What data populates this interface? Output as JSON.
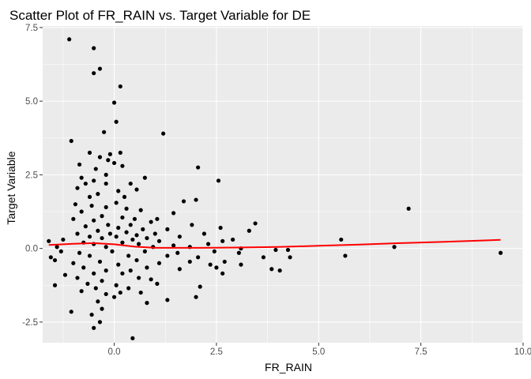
{
  "chart_data": {
    "type": "scatter",
    "title": "Scatter Plot of FR_RAIN vs. Target Variable for DE",
    "xlabel": "FR_RAIN",
    "ylabel": "Target Variable",
    "xlim": [
      -1.75,
      10.0
    ],
    "ylim": [
      -3.2,
      7.55
    ],
    "x_ticks": [
      0.0,
      2.5,
      5.0,
      7.5,
      10.0
    ],
    "x_tick_labels": [
      "0.0",
      "2.5",
      "5.0",
      "7.5",
      "10.0"
    ],
    "y_ticks": [
      -2.5,
      0.0,
      2.5,
      5.0,
      7.5
    ],
    "y_tick_labels": [
      "-2.5",
      "0.0",
      "2.5",
      "5.0",
      "7.5"
    ],
    "grid": true,
    "point_color": "#000000",
    "panel_color": "#ebebeb",
    "trend_color": "#ff0000",
    "points": [
      [
        -1.1,
        7.1
      ],
      [
        -0.5,
        6.8
      ],
      [
        -0.35,
        6.1
      ],
      [
        -0.5,
        5.95
      ],
      [
        0.15,
        5.5
      ],
      [
        0.0,
        4.95
      ],
      [
        0.05,
        4.3
      ],
      [
        -0.25,
        3.95
      ],
      [
        1.2,
        3.9
      ],
      [
        -1.05,
        3.65
      ],
      [
        -0.6,
        3.25
      ],
      [
        -0.1,
        3.2
      ],
      [
        0.15,
        3.25
      ],
      [
        -0.35,
        3.1
      ],
      [
        -0.15,
        3.0
      ],
      [
        -0.85,
        2.85
      ],
      [
        0.0,
        2.9
      ],
      [
        0.2,
        2.8
      ],
      [
        2.05,
        2.75
      ],
      [
        -0.45,
        2.7
      ],
      [
        -0.2,
        2.5
      ],
      [
        -0.8,
        2.4
      ],
      [
        0.75,
        2.4
      ],
      [
        -0.5,
        2.3
      ],
      [
        2.55,
        2.3
      ],
      [
        -0.7,
        2.2
      ],
      [
        -0.2,
        2.2
      ],
      [
        0.4,
        2.2
      ],
      [
        -0.9,
        2.05
      ],
      [
        0.1,
        1.95
      ],
      [
        0.55,
        2.0
      ],
      [
        -0.4,
        1.85
      ],
      [
        0.25,
        1.75
      ],
      [
        -0.6,
        1.75
      ],
      [
        0.05,
        1.55
      ],
      [
        1.7,
        1.6
      ],
      [
        2.0,
        1.65
      ],
      [
        -0.95,
        1.5
      ],
      [
        -0.55,
        1.45
      ],
      [
        -0.2,
        1.4
      ],
      [
        0.3,
        1.35
      ],
      [
        0.65,
        1.3
      ],
      [
        -0.8,
        1.25
      ],
      [
        1.45,
        1.2
      ],
      [
        -0.3,
        1.1
      ],
      [
        0.2,
        1.05
      ],
      [
        -1.0,
        1.0
      ],
      [
        0.5,
        1.0
      ],
      [
        -0.5,
        0.95
      ],
      [
        1.05,
        1.0
      ],
      [
        0.9,
        0.9
      ],
      [
        3.45,
        0.85
      ],
      [
        7.2,
        1.35
      ],
      [
        -0.15,
        0.8
      ],
      [
        0.4,
        0.8
      ],
      [
        1.9,
        0.8
      ],
      [
        -0.7,
        0.75
      ],
      [
        0.1,
        0.7
      ],
      [
        0.7,
        0.65
      ],
      [
        1.3,
        0.65
      ],
      [
        2.6,
        0.7
      ],
      [
        -0.4,
        0.6
      ],
      [
        0.3,
        0.55
      ],
      [
        3.3,
        0.6
      ],
      [
        -0.9,
        0.5
      ],
      [
        -0.1,
        0.5
      ],
      [
        0.55,
        0.45
      ],
      [
        1.0,
        0.5
      ],
      [
        2.2,
        0.5
      ],
      [
        -0.6,
        0.4
      ],
      [
        0.05,
        0.4
      ],
      [
        0.8,
        0.35
      ],
      [
        1.6,
        0.4
      ],
      [
        -1.25,
        0.3
      ],
      [
        -0.3,
        0.35
      ],
      [
        0.45,
        0.3
      ],
      [
        2.9,
        0.3
      ],
      [
        5.55,
        0.3
      ],
      [
        -1.6,
        0.25
      ],
      [
        -0.75,
        0.2
      ],
      [
        0.2,
        0.2
      ],
      [
        1.1,
        0.25
      ],
      [
        2.65,
        0.25
      ],
      [
        -0.5,
        0.15
      ],
      [
        0.6,
        0.15
      ],
      [
        1.45,
        0.1
      ],
      [
        2.3,
        0.15
      ],
      [
        3.1,
        0.0
      ],
      [
        -1.4,
        0.05
      ],
      [
        -0.2,
        0.05
      ],
      [
        0.95,
        0.05
      ],
      [
        1.85,
        0.05
      ],
      [
        3.95,
        -0.05
      ],
      [
        4.25,
        -0.05
      ],
      [
        6.85,
        0.05
      ],
      [
        -1.3,
        -0.1
      ],
      [
        -0.85,
        -0.15
      ],
      [
        -0.05,
        -0.1
      ],
      [
        0.75,
        -0.1
      ],
      [
        1.55,
        -0.15
      ],
      [
        2.45,
        -0.1
      ],
      [
        3.05,
        -0.15
      ],
      [
        9.45,
        -0.15
      ],
      [
        -1.55,
        -0.3
      ],
      [
        -0.6,
        -0.25
      ],
      [
        0.35,
        -0.25
      ],
      [
        1.3,
        -0.25
      ],
      [
        2.05,
        -0.3
      ],
      [
        3.65,
        -0.3
      ],
      [
        4.3,
        -0.3
      ],
      [
        5.65,
        -0.25
      ],
      [
        -1.45,
        -0.4
      ],
      [
        -0.35,
        -0.45
      ],
      [
        0.55,
        -0.4
      ],
      [
        1.85,
        -0.45
      ],
      [
        2.7,
        -0.45
      ],
      [
        -1.0,
        -0.5
      ],
      [
        0.1,
        -0.55
      ],
      [
        1.1,
        -0.5
      ],
      [
        2.35,
        -0.55
      ],
      [
        3.1,
        -0.55
      ],
      [
        -0.75,
        -0.65
      ],
      [
        0.8,
        -0.65
      ],
      [
        2.5,
        -0.65
      ],
      [
        -0.2,
        -0.75
      ],
      [
        0.4,
        -0.75
      ],
      [
        1.6,
        -0.7
      ],
      [
        3.85,
        -0.7
      ],
      [
        4.05,
        -0.75
      ],
      [
        -1.2,
        -0.9
      ],
      [
        -0.5,
        -0.85
      ],
      [
        0.2,
        -0.85
      ],
      [
        2.65,
        -0.85
      ],
      [
        -0.9,
        -1.0
      ],
      [
        0.6,
        -1.0
      ],
      [
        -0.3,
        -1.1
      ],
      [
        0.9,
        -1.05
      ],
      [
        -1.45,
        -1.25
      ],
      [
        -0.65,
        -1.2
      ],
      [
        0.05,
        -1.25
      ],
      [
        1.05,
        -1.2
      ],
      [
        2.1,
        -1.3
      ],
      [
        -0.45,
        -1.35
      ],
      [
        0.35,
        -1.35
      ],
      [
        -0.8,
        -1.45
      ],
      [
        0.15,
        -1.5
      ],
      [
        -0.2,
        -1.55
      ],
      [
        0.65,
        -1.5
      ],
      [
        0.0,
        -1.65
      ],
      [
        1.3,
        -1.75
      ],
      [
        2.0,
        -1.65
      ],
      [
        -0.4,
        -1.8
      ],
      [
        0.8,
        -1.85
      ],
      [
        -1.05,
        -2.15
      ],
      [
        -0.3,
        -2.05
      ],
      [
        -0.55,
        -2.25
      ],
      [
        -0.35,
        -2.5
      ],
      [
        -0.5,
        -2.7
      ],
      [
        0.45,
        -3.05
      ]
    ],
    "trend": [
      [
        -1.6,
        0.12
      ],
      [
        -1.0,
        0.16
      ],
      [
        -0.5,
        0.18
      ],
      [
        0.0,
        0.14
      ],
      [
        0.5,
        0.06
      ],
      [
        1.0,
        0.02
      ],
      [
        2.0,
        0.02
      ],
      [
        3.0,
        0.03
      ],
      [
        4.0,
        0.05
      ],
      [
        5.0,
        0.09
      ],
      [
        6.0,
        0.13
      ],
      [
        7.0,
        0.18
      ],
      [
        8.0,
        0.22
      ],
      [
        9.0,
        0.27
      ],
      [
        9.45,
        0.29
      ]
    ]
  }
}
